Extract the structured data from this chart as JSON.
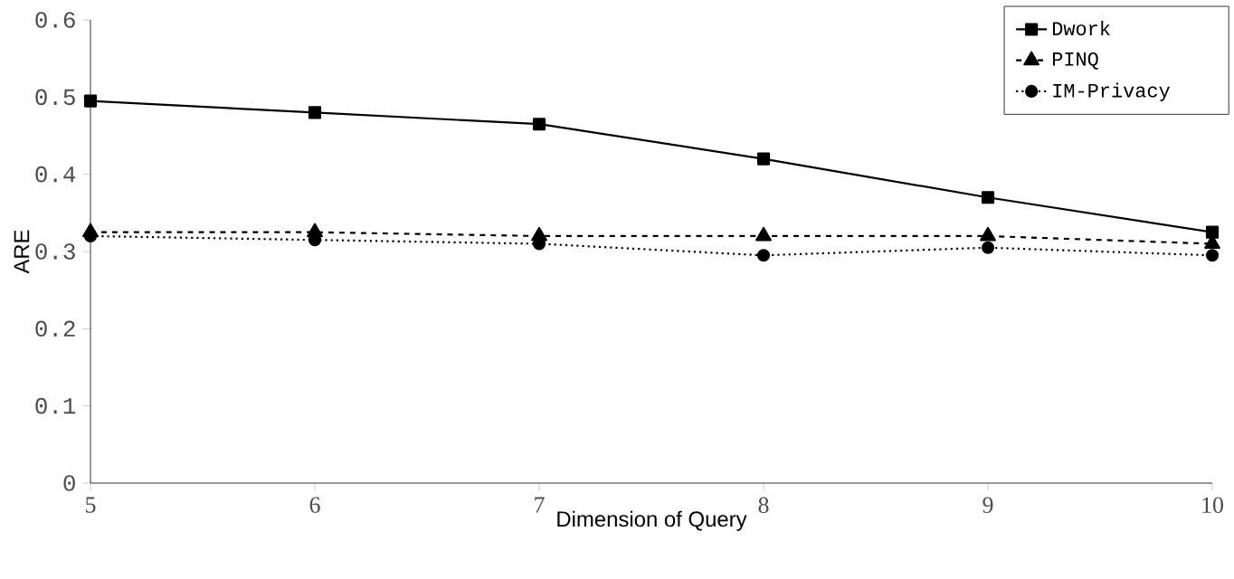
{
  "chart_data": {
    "type": "line",
    "xlabel": "Dimension of Query",
    "ylabel": "ARE",
    "x": [
      5,
      6,
      7,
      8,
      9,
      10
    ],
    "series": [
      {
        "name": "Dwork",
        "color": "#000000",
        "marker": "square",
        "line_style": "solid",
        "values": [
          0.495,
          0.48,
          0.465,
          0.42,
          0.37,
          0.325
        ]
      },
      {
        "name": "PINQ",
        "color": "#000000",
        "marker": "triangle",
        "line_style": "dashed",
        "values": [
          0.325,
          0.325,
          0.32,
          0.32,
          0.32,
          0.31
        ]
      },
      {
        "name": "IM-Privacy",
        "color": "#000000",
        "marker": "circle",
        "line_style": "dotted",
        "values": [
          0.32,
          0.315,
          0.31,
          0.295,
          0.305,
          0.295
        ]
      }
    ],
    "xlim": [
      5,
      10
    ],
    "ylim": [
      0,
      0.6
    ],
    "xticks": [
      5,
      6,
      7,
      8,
      9,
      10
    ],
    "yticks": [
      0,
      0.1,
      0.2,
      0.3,
      0.4,
      0.5,
      0.6
    ],
    "grid": false,
    "legend": "top right"
  }
}
